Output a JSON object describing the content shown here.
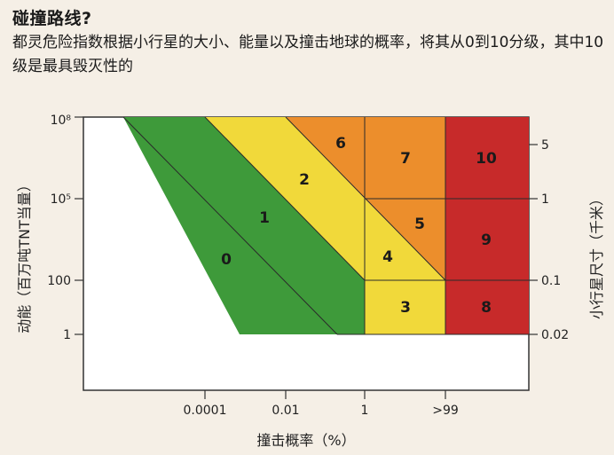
{
  "title": "碰撞路线?",
  "description": "都灵危险指数根据小行星的大小、能量以及撞击地球的概率，将其从0到10分级，其中10级是最具毁灭性的",
  "chart_data": {
    "type": "heatmap",
    "xlabel": "撞击概率（%）",
    "ylabel_left": "动能（百万吨TNT当量）",
    "ylabel_right": "小行星尺寸（千米）",
    "x_ticks": [
      "0.0001",
      "0.01",
      "1",
      ">99"
    ],
    "y_ticks_left": [
      "1",
      "100",
      "10⁵",
      "10⁸"
    ],
    "y_ticks_right": [
      "0.02",
      "0.1",
      "1",
      "5"
    ],
    "regions": [
      {
        "label": "0",
        "color": "#ffffff"
      },
      {
        "label": "1",
        "color": "#3e9a3a"
      },
      {
        "label": "2",
        "color": "#f1d93a"
      },
      {
        "label": "3",
        "color": "#f1d93a"
      },
      {
        "label": "4",
        "color": "#f1d93a"
      },
      {
        "label": "5",
        "color": "#ec8e2c"
      },
      {
        "label": "6",
        "color": "#ec8e2c"
      },
      {
        "label": "7",
        "color": "#ec8e2c"
      },
      {
        "label": "8",
        "color": "#c72a2a"
      },
      {
        "label": "9",
        "color": "#c72a2a"
      },
      {
        "label": "10",
        "color": "#c72a2a"
      }
    ]
  }
}
